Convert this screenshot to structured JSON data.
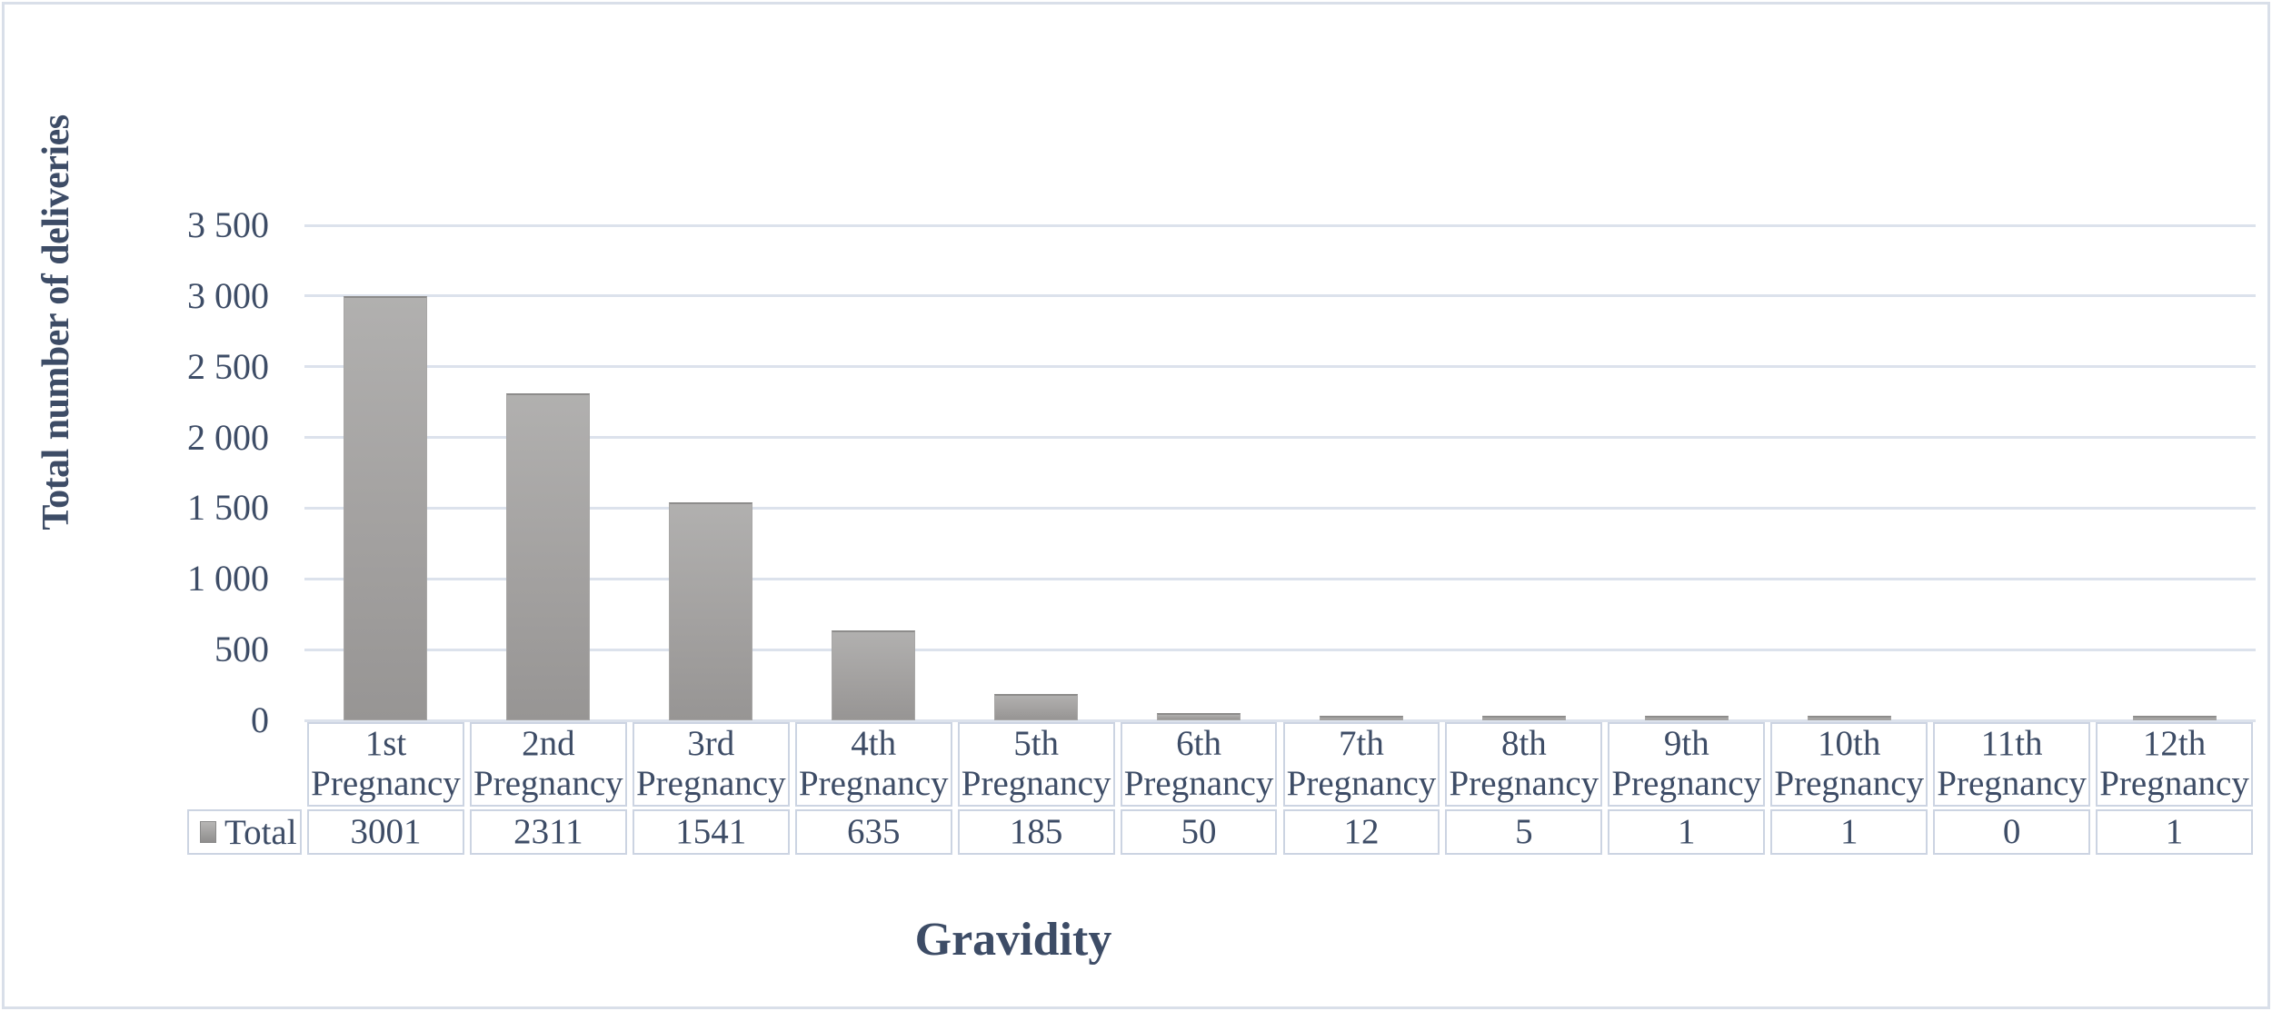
{
  "figure": {
    "y_axis_title": "Total number of deliveries",
    "x_axis_title": "Gravidity"
  },
  "legend": {
    "label": "Total"
  },
  "chart_data": {
    "type": "bar",
    "title": "",
    "xlabel": "Gravidity",
    "ylabel": "Total number of deliveries",
    "categories": [
      "1st Pregnancy",
      "2nd Pregnancy",
      "3rd Pregnancy",
      "4th Pregnancy",
      "5th Pregnancy",
      "6th Pregnancy",
      "7th Pregnancy",
      "8th Pregnancy",
      "9th Pregnancy",
      "10th Pregnancy",
      "11th Pregnancy",
      "12th Pregnancy"
    ],
    "category_ordinals": [
      "1st",
      "2nd",
      "3rd",
      "4th",
      "5th",
      "6th",
      "7th",
      "8th",
      "9th",
      "10th",
      "11th",
      "12th"
    ],
    "category_word": "Pregnancy",
    "series": [
      {
        "name": "Total",
        "values": [
          3001,
          2311,
          1541,
          635,
          185,
          50,
          12,
          5,
          1,
          1,
          0,
          1
        ]
      }
    ],
    "ylim": [
      0,
      3500
    ],
    "ytick_step": 500,
    "ytick_labels": [
      "3 500",
      "3 000",
      "2 500",
      "2 000",
      "1 500",
      "1 000",
      "500",
      "0"
    ],
    "grid": true,
    "legend_position": "table-left",
    "data_table_shown": true,
    "colors": {
      "bar": "#a3a1a0",
      "text": "#3d4c66",
      "gridline": "#dce2ec",
      "table_border": "#ccd4e2",
      "figure_border": "#d9dfe9"
    }
  }
}
